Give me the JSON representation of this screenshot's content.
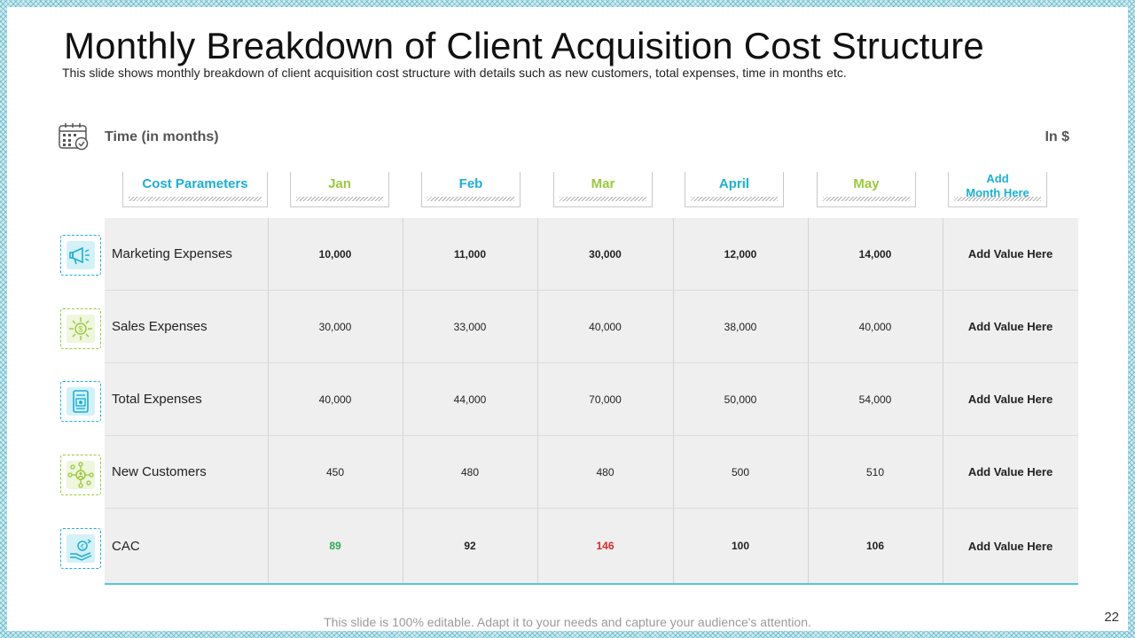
{
  "title": "Monthly Breakdown of Client Acquisition Cost Structure",
  "subtitle": "This slide shows monthly breakdown of client acquisition cost structure with details such as new customers, total expenses, time in months etc.",
  "time_label": "Time (in months)",
  "unit_label": "In $",
  "columns": [
    {
      "label": "Cost Parameters",
      "color": "#1ab0d6"
    },
    {
      "label": "Jan",
      "color": "#9cc83c"
    },
    {
      "label": "Feb",
      "color": "#1ab0d6"
    },
    {
      "label": "Mar",
      "color": "#9cc83c"
    },
    {
      "label": "April",
      "color": "#1ab0d6"
    },
    {
      "label": "May",
      "color": "#9cc83c"
    },
    {
      "label_line1": "Add",
      "label_line2": "Month Here",
      "color": "#1ab0d6"
    }
  ],
  "rows": [
    {
      "label": "Marketing Expenses",
      "icon": "megaphone-icon",
      "values": [
        "10,000",
        "11,000",
        "30,000",
        "12,000",
        "14,000"
      ],
      "extra": "Add Value Here"
    },
    {
      "label": "Sales Expenses",
      "icon": "dollar-gear-icon",
      "values": [
        "30,000",
        "33,000",
        "40,000",
        "38,000",
        "40,000"
      ],
      "extra": "Add Value Here"
    },
    {
      "label": "Total Expenses",
      "icon": "document-money-icon",
      "values": [
        "40,000",
        "44,000",
        "70,000",
        "50,000",
        "54,000"
      ],
      "extra": "Add Value Here"
    },
    {
      "label": "New Customers",
      "icon": "customer-network-icon",
      "values": [
        "450",
        "480",
        "480",
        "500",
        "510"
      ],
      "extra": "Add Value Here"
    },
    {
      "label": "CAC",
      "icon": "hand-coin-icon",
      "values": [
        "89",
        "92",
        "146",
        "100",
        "106"
      ],
      "extra": "Add Value Here"
    }
  ],
  "colors": {
    "accent_blue": "#1ab0d6",
    "accent_green": "#9cc83c",
    "cac_low": "#2fa84f",
    "cac_high": "#d62b2b"
  },
  "footer": "This slide is 100% editable. Adapt it to your needs and capture your audience's attention.",
  "page_number": "22"
}
